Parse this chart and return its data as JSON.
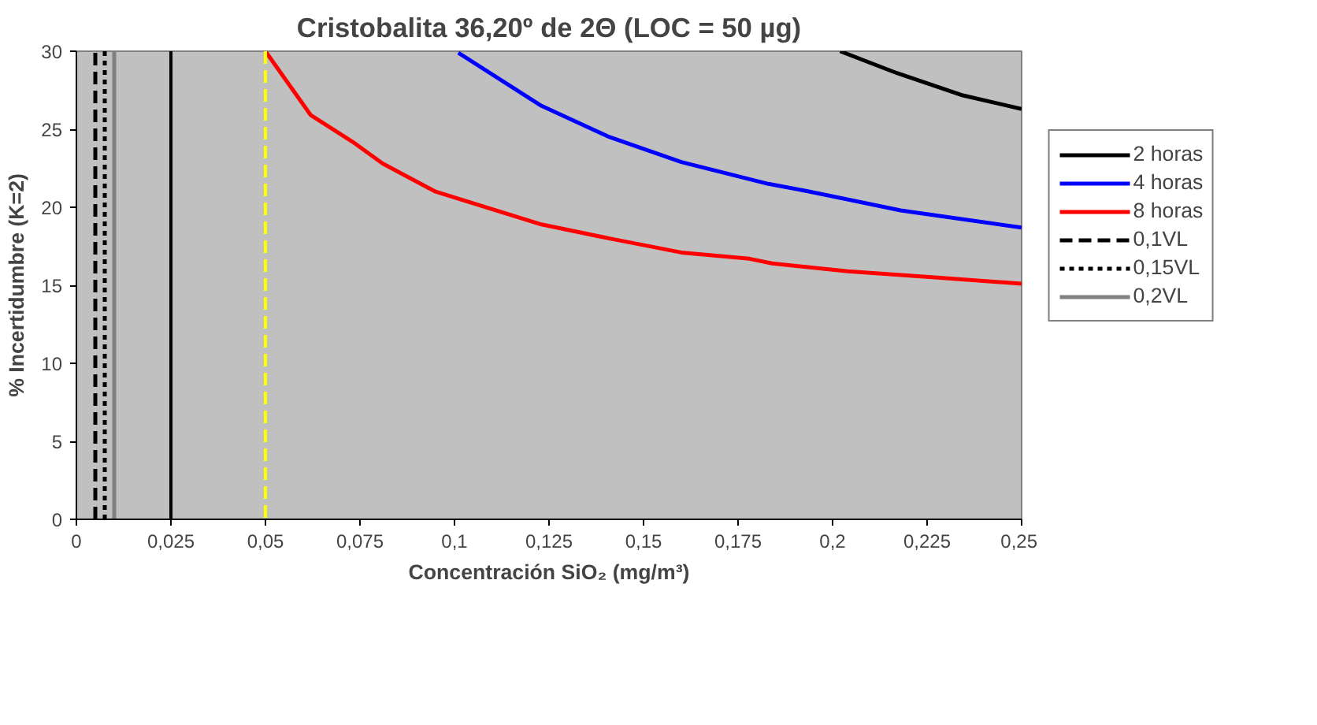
{
  "chart_data": {
    "type": "line",
    "title": "Cristobalita 36,20º de 2Θ (LOC = 50 µg)",
    "xlabel": "Concentración SiO₂ (mg/m³)",
    "ylabel": "% Incertidumbre (K=2)",
    "xlim": [
      0,
      0.25
    ],
    "ylim": [
      0,
      30
    ],
    "xticks": [
      0,
      {
        "value": 0.025,
        "label": "0,025"
      },
      {
        "value": 0.05,
        "label": "0,05"
      },
      {
        "value": 0.075,
        "label": "0,075"
      },
      {
        "value": 0.1,
        "label": "0,1"
      },
      {
        "value": 0.125,
        "label": "0,125"
      },
      {
        "value": 0.15,
        "label": "0,15"
      },
      {
        "value": 0.175,
        "label": "0,175"
      },
      {
        "value": 0.2,
        "label": "0,2"
      },
      {
        "value": 0.225,
        "label": "0,225"
      },
      {
        "value": 0.25,
        "label": "0,25"
      }
    ],
    "yticks": [
      0,
      5,
      10,
      15,
      20,
      25,
      30
    ],
    "grid": false,
    "legend": "right",
    "marker": "none",
    "series": [
      {
        "name": "2 horas",
        "color": "#000000",
        "line_style": "solid",
        "x": [
          0.202,
          0.217,
          0.234,
          0.25
        ],
        "values": [
          30,
          28.6,
          27.2,
          26.3
        ]
      },
      {
        "name": "4 horas",
        "color": "#0000ff",
        "line_style": "solid",
        "x": [
          0.101,
          0.123,
          0.141,
          0.16,
          0.183,
          0.194,
          0.218,
          0.25
        ],
        "values": [
          29.9,
          26.5,
          24.5,
          22.9,
          21.5,
          21.0,
          19.8,
          18.7
        ]
      },
      {
        "name": "8 horas",
        "color": "#ff0000",
        "line_style": "solid",
        "x": [
          0.05,
          0.062,
          0.073,
          0.081,
          0.095,
          0.123,
          0.141,
          0.16,
          0.178,
          0.184,
          0.204,
          0.227,
          0.25
        ],
        "values": [
          30,
          25.9,
          24.2,
          22.8,
          21.0,
          18.9,
          18.0,
          17.1,
          16.7,
          16.4,
          15.9,
          15.5,
          15.1
        ]
      },
      {
        "name": "0,1VL",
        "color": "#000000",
        "line_style": "dashed",
        "x": [
          0.005,
          0.005
        ],
        "values": [
          0,
          30
        ]
      },
      {
        "name": "0,15VL",
        "color": "#000000",
        "line_style": "dotted",
        "x": [
          0.0075,
          0.0075
        ],
        "values": [
          0,
          30
        ]
      },
      {
        "name": "0,2VL",
        "color": "#808080",
        "line_style": "solid",
        "x": [
          0.01,
          0.01
        ],
        "values": [
          0,
          30
        ]
      }
    ],
    "ref_lines": [
      {
        "axis": "x",
        "value": 0.025,
        "color": "#000000",
        "line_style": "solid"
      },
      {
        "axis": "x",
        "value": 0.05,
        "color": "#ffff00",
        "line_style": "dashed"
      }
    ]
  }
}
